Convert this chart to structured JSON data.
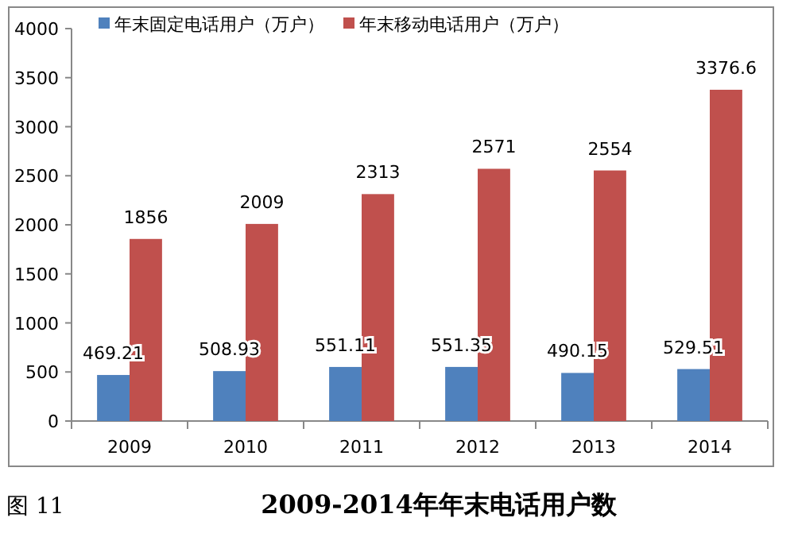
{
  "chart_data": {
    "type": "bar",
    "title": "2009-2014年年末电话用户数",
    "annotations": [
      "图 11"
    ],
    "categories": [
      "2009",
      "2010",
      "2011",
      "2012",
      "2013",
      "2014"
    ],
    "series": [
      {
        "name": "年末固定电话用户（万户）",
        "color": "#4f81bd",
        "values": [
          469.21,
          508.93,
          551.11,
          551.35,
          490.15,
          529.51
        ]
      },
      {
        "name": "年末移动电话用户（万户）",
        "color": "#c0504d",
        "values": [
          1856,
          2009,
          2313,
          2571,
          2554,
          3376.6
        ]
      }
    ],
    "ylim": [
      0,
      4000
    ],
    "yticks": [
      0,
      500,
      1000,
      1500,
      2000,
      2500,
      3000,
      3500,
      4000
    ],
    "data_labels": true,
    "legend": "top",
    "grid": false
  }
}
